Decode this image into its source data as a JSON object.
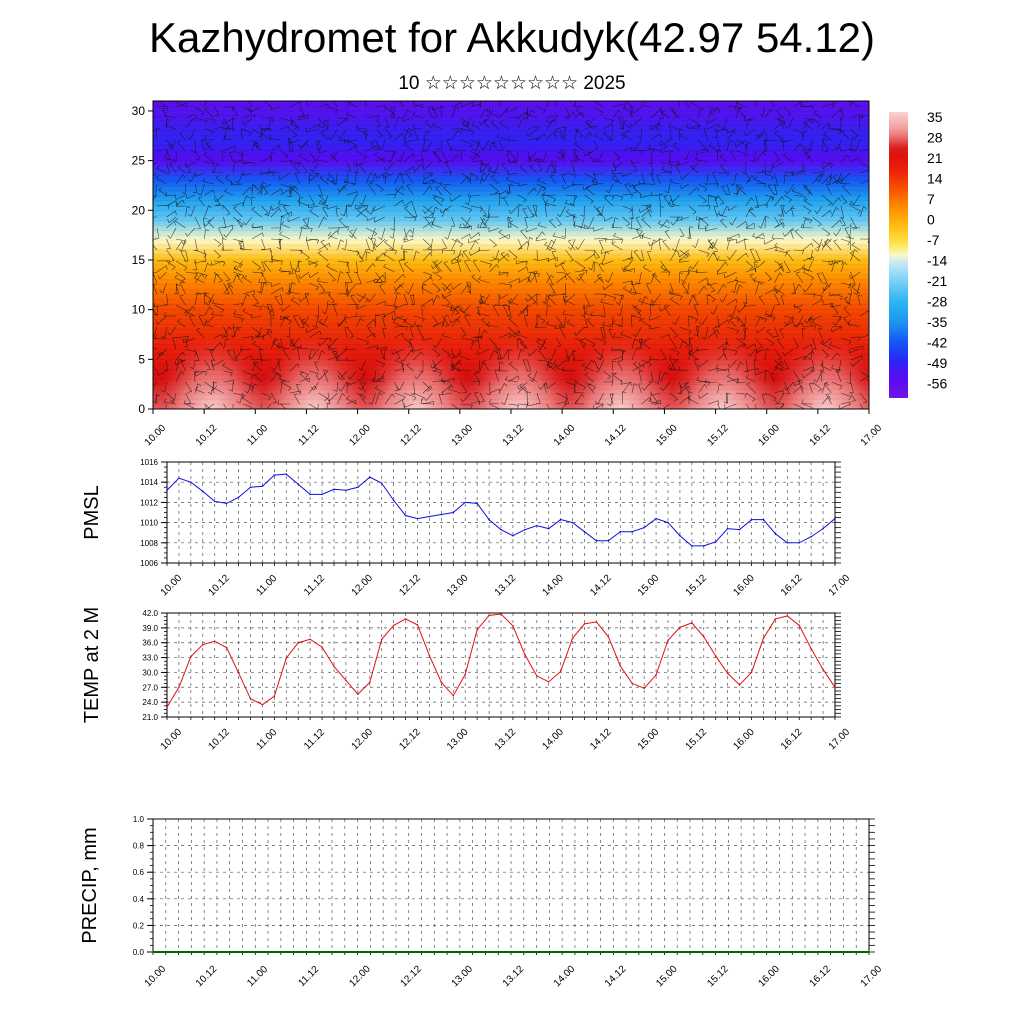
{
  "title": "Kazhydromet for Akkudyk(42.97 54.12)",
  "subtitle": "10 ☆☆☆☆☆☆☆☆☆ 2025",
  "time_ticks": [
    "10.00",
    "10.12",
    "11.00",
    "11.12",
    "12.00",
    "12.12",
    "13.00",
    "13.12",
    "14.00",
    "14.12",
    "15.00",
    "15.12",
    "16.00",
    "16.12",
    "17.00"
  ],
  "colors": {
    "pmsl_line": "#1010e0",
    "temp_line": "#e01010",
    "precip_line": "#006600"
  },
  "chart_data": [
    {
      "type": "heatmap",
      "title": "",
      "xlabel": "",
      "ylabel": "",
      "x_ticks": [
        "10.00",
        "10.12",
        "11.00",
        "11.12",
        "12.00",
        "12.12",
        "13.00",
        "13.12",
        "14.00",
        "14.12",
        "15.00",
        "15.12",
        "16.00",
        "16.12",
        "17.00"
      ],
      "y_ticks": [
        0,
        5,
        10,
        15,
        20,
        25,
        30
      ],
      "ylim": [
        0,
        31
      ],
      "colorbar_ticks": [
        "35",
        "28",
        "21",
        "14",
        "7",
        "0",
        "-7",
        "-14",
        "-21",
        "-28",
        "-35",
        "-42",
        "-49",
        "-56"
      ],
      "colorbar_range": [
        -63,
        42
      ],
      "profile": [
        {
          "level": 0,
          "value": 32
        },
        {
          "level": 3,
          "value": 28
        },
        {
          "level": 6,
          "value": 22
        },
        {
          "level": 10,
          "value": 15
        },
        {
          "level": 13,
          "value": 7
        },
        {
          "level": 15,
          "value": 0
        },
        {
          "level": 17,
          "value": -10
        },
        {
          "level": 19,
          "value": -22
        },
        {
          "level": 21,
          "value": -32
        },
        {
          "level": 23,
          "value": -42
        },
        {
          "level": 25,
          "value": -56
        },
        {
          "level": 27,
          "value": -50
        },
        {
          "level": 31,
          "value": -58
        }
      ],
      "overlay": "wind barbs",
      "grid": false,
      "legend_position": "right"
    },
    {
      "type": "line",
      "title": "",
      "xlabel": "",
      "ylabel": "PMSL",
      "ylim": [
        1006,
        1016
      ],
      "y_ticks": [
        "1006",
        "1008",
        "1010",
        "1012",
        "1014",
        "1016"
      ],
      "x_ticks": [
        "10.00",
        "10.12",
        "11.00",
        "11.12",
        "12.00",
        "12.12",
        "13.00",
        "13.12",
        "14.00",
        "14.12",
        "15.00",
        "15.12",
        "16.00",
        "16.12",
        "17.00"
      ],
      "x_start": "10.00",
      "x_step_hours": 3,
      "values": [
        1013.2,
        1014.4,
        1014.0,
        1013.1,
        1012.1,
        1011.9,
        1012.5,
        1013.5,
        1013.6,
        1014.7,
        1014.8,
        1013.8,
        1012.8,
        1012.8,
        1013.3,
        1013.2,
        1013.5,
        1014.5,
        1013.9,
        1012.2,
        1010.7,
        1010.4,
        1010.6,
        1010.8,
        1011.0,
        1012.0,
        1011.9,
        1010.3,
        1009.3,
        1008.7,
        1009.3,
        1009.7,
        1009.4,
        1010.3,
        1010.0,
        1009.1,
        1008.2,
        1008.2,
        1009.1,
        1009.1,
        1009.5,
        1010.4,
        1010.0,
        1008.7,
        1007.7,
        1007.7,
        1008.1,
        1009.4,
        1009.3,
        1010.3,
        1010.3,
        1008.9,
        1008.0,
        1008.0,
        1008.6,
        1009.4,
        1010.4
      ],
      "grid": true
    },
    {
      "type": "line",
      "title": "",
      "xlabel": "",
      "ylabel": "TEMP at 2 M",
      "ylim": [
        21,
        42
      ],
      "y_ticks": [
        "21.0",
        "24.0",
        "27.0",
        "30.0",
        "33.0",
        "36.0",
        "39.0",
        "42.0"
      ],
      "x_ticks": [
        "10.00",
        "10.12",
        "11.00",
        "11.12",
        "12.00",
        "12.12",
        "13.00",
        "13.12",
        "14.00",
        "14.12",
        "15.00",
        "15.12",
        "16.00",
        "16.12",
        "17.00"
      ],
      "x_start": "10.00",
      "x_step_hours": 3,
      "values": [
        23.0,
        27.0,
        33.2,
        35.6,
        36.3,
        35.0,
        29.9,
        24.7,
        23.5,
        25.2,
        32.9,
        36.0,
        36.7,
        35.1,
        31.2,
        28.4,
        25.6,
        28.0,
        36.7,
        39.5,
        40.8,
        39.6,
        33.4,
        28.0,
        25.3,
        29.6,
        38.6,
        41.5,
        41.8,
        39.4,
        33.6,
        29.3,
        28.1,
        30.2,
        36.9,
        39.8,
        40.2,
        37.2,
        31.3,
        27.8,
        26.8,
        29.5,
        36.5,
        39.1,
        40.0,
        37.2,
        33.3,
        29.8,
        27.5,
        30.0,
        36.9,
        40.8,
        41.4,
        39.5,
        34.8,
        30.6,
        27.0
      ],
      "grid": true
    },
    {
      "type": "line",
      "title": "",
      "xlabel": "",
      "ylabel": "PRECIP, mm",
      "ylim": [
        0,
        1
      ],
      "y_ticks": [
        "0.0",
        "0.2",
        "0.4",
        "0.6",
        "0.8",
        "1.0"
      ],
      "x_ticks": [
        "10.00",
        "10.12",
        "11.00",
        "11.12",
        "12.00",
        "12.12",
        "13.00",
        "13.12",
        "14.00",
        "14.12",
        "15.00",
        "15.12",
        "16.00",
        "16.12",
        "17.00"
      ],
      "x_start": "10.00",
      "x_step_hours": 3,
      "values": [
        0,
        0,
        0,
        0,
        0,
        0,
        0,
        0,
        0,
        0,
        0,
        0,
        0,
        0,
        0,
        0,
        0,
        0,
        0,
        0,
        0,
        0,
        0,
        0,
        0,
        0,
        0,
        0,
        0,
        0,
        0,
        0,
        0,
        0,
        0,
        0,
        0,
        0,
        0,
        0,
        0,
        0,
        0,
        0,
        0,
        0,
        0,
        0,
        0,
        0,
        0,
        0,
        0,
        0,
        0,
        0,
        0
      ],
      "grid": true
    }
  ]
}
